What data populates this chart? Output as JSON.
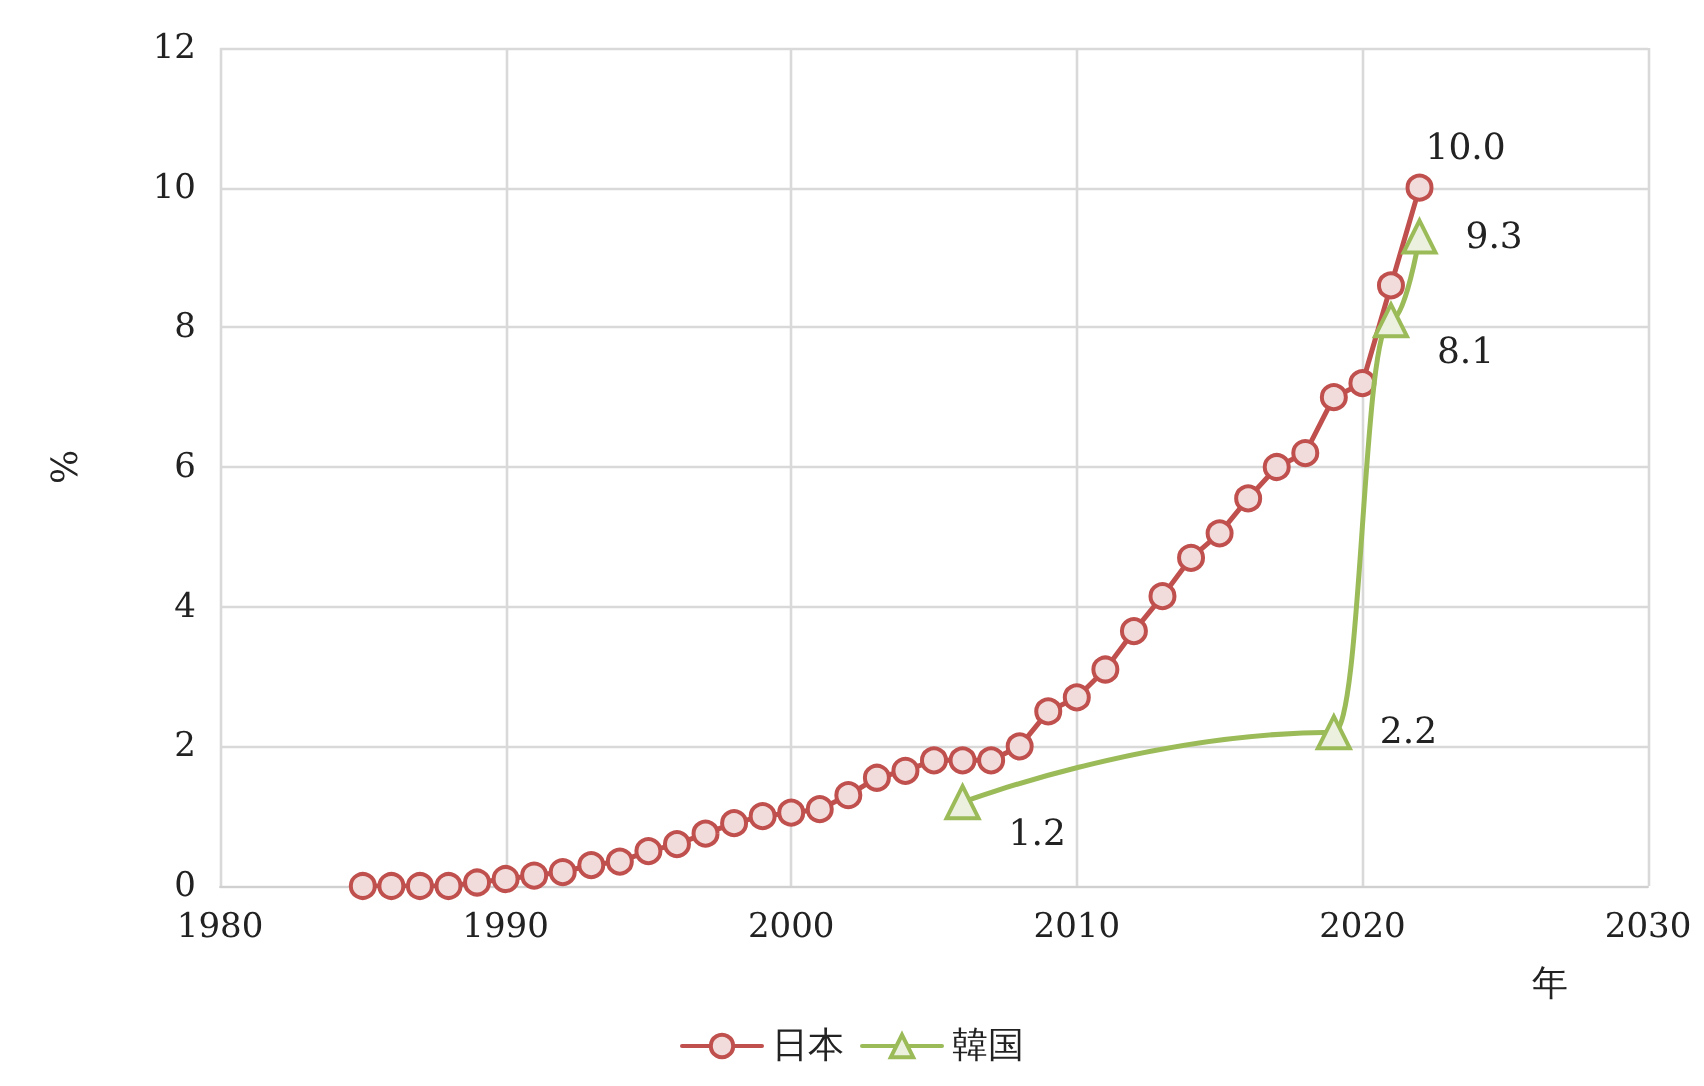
{
  "chart_data": {
    "type": "line",
    "xlabel": "年",
    "ylabel": "%",
    "xlim": [
      1980,
      2030
    ],
    "xticks": [
      1980,
      1990,
      2000,
      2010,
      2020,
      2030
    ],
    "ylim": [
      0,
      12
    ],
    "yticks": [
      0,
      2,
      4,
      6,
      8,
      10,
      12
    ],
    "grid": true,
    "legend": "bottom",
    "line_style": "solid",
    "series": [
      {
        "name": "日本",
        "color": "#c0504d",
        "marker": "circle",
        "x": [
          1985,
          1986,
          1987,
          1988,
          1989,
          1990,
          1991,
          1992,
          1993,
          1994,
          1995,
          1996,
          1997,
          1998,
          1999,
          2000,
          2001,
          2002,
          2003,
          2004,
          2005,
          2006,
          2007,
          2008,
          2009,
          2010,
          2011,
          2012,
          2013,
          2014,
          2015,
          2016,
          2017,
          2018,
          2019,
          2020,
          2021,
          2022
        ],
        "values": [
          0.0,
          0.0,
          0.0,
          0.0,
          0.05,
          0.1,
          0.15,
          0.2,
          0.3,
          0.35,
          0.5,
          0.6,
          0.75,
          0.9,
          1.0,
          1.05,
          1.1,
          1.3,
          1.55,
          1.65,
          1.8,
          1.8,
          1.8,
          2.0,
          2.5,
          2.7,
          3.1,
          3.65,
          4.15,
          4.7,
          5.05,
          5.55,
          6.0,
          6.2,
          7.0,
          7.2,
          8.6,
          10.0
        ],
        "value_labels": [
          null,
          null,
          null,
          null,
          null,
          null,
          null,
          null,
          null,
          null,
          null,
          null,
          null,
          null,
          null,
          null,
          null,
          null,
          null,
          null,
          null,
          null,
          null,
          null,
          null,
          null,
          null,
          null,
          null,
          null,
          null,
          null,
          null,
          null,
          null,
          null,
          null,
          "10.0"
        ]
      },
      {
        "name": "韓国",
        "color": "#9bbb59",
        "marker": "triangle",
        "x": [
          2006,
          2019,
          2021,
          2022
        ],
        "values": [
          1.2,
          2.2,
          8.1,
          9.3
        ],
        "value_labels": [
          "1.2",
          "2.2",
          "8.1",
          "9.3"
        ]
      }
    ]
  }
}
